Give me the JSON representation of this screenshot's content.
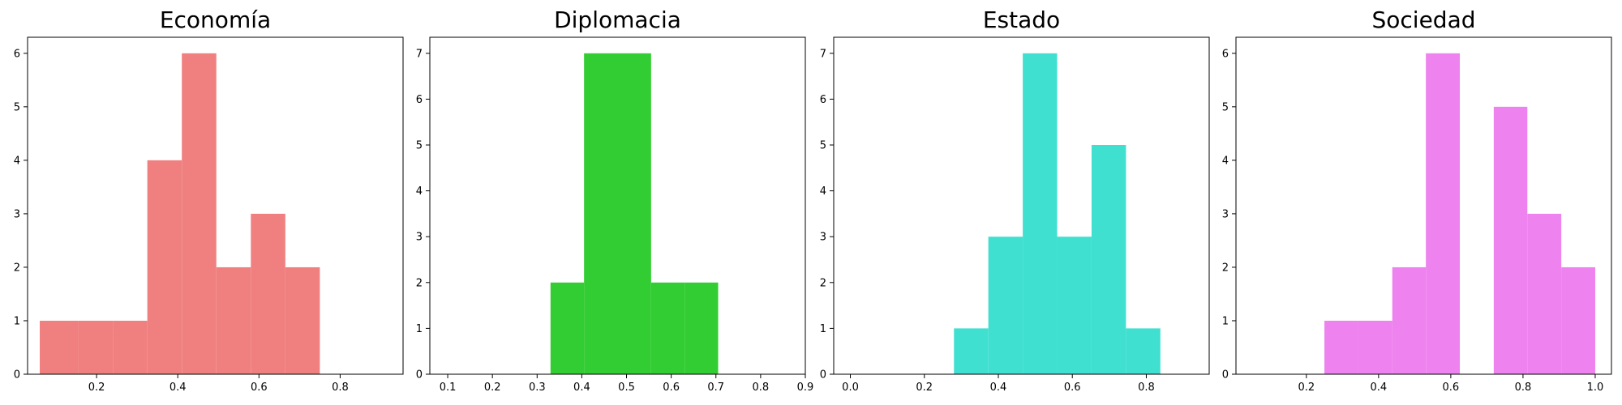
{
  "chart_data": [
    {
      "type": "bar",
      "title": "Economía",
      "color": "#f08080",
      "xlim": [
        0.03,
        0.955
      ],
      "ylim": [
        0,
        6.3
      ],
      "xticks": [
        "0.2",
        "0.4",
        "0.6",
        "0.8"
      ],
      "yticks": [
        "0",
        "1",
        "2",
        "3",
        "4",
        "5",
        "6"
      ],
      "bins": [
        {
          "x0": 0.06,
          "x1": 0.155,
          "count": 1
        },
        {
          "x0": 0.155,
          "x1": 0.24,
          "count": 1
        },
        {
          "x0": 0.24,
          "x1": 0.325,
          "count": 1
        },
        {
          "x0": 0.325,
          "x1": 0.41,
          "count": 4
        },
        {
          "x0": 0.41,
          "x1": 0.495,
          "count": 6
        },
        {
          "x0": 0.495,
          "x1": 0.58,
          "count": 2
        },
        {
          "x0": 0.58,
          "x1": 0.665,
          "count": 3
        },
        {
          "x0": 0.665,
          "x1": 0.75,
          "count": 2
        }
      ]
    },
    {
      "type": "bar",
      "title": "Diplomacia",
      "color": "#32cd32",
      "xlim": [
        0.06,
        0.9
      ],
      "ylim": [
        0,
        7.35
      ],
      "xticks": [
        "0.1",
        "0.2",
        "0.3",
        "0.4",
        "0.5",
        "0.6",
        "0.7",
        "0.8",
        "0.9"
      ],
      "yticks": [
        "0",
        "1",
        "2",
        "3",
        "4",
        "5",
        "6",
        "7"
      ],
      "bins": [
        {
          "x0": 0.33,
          "x1": 0.405,
          "count": 2
        },
        {
          "x0": 0.405,
          "x1": 0.48,
          "count": 7
        },
        {
          "x0": 0.48,
          "x1": 0.555,
          "count": 7
        },
        {
          "x0": 0.555,
          "x1": 0.63,
          "count": 2
        },
        {
          "x0": 0.63,
          "x1": 0.705,
          "count": 2
        }
      ]
    },
    {
      "type": "bar",
      "title": "Estado",
      "color": "#40e0d0",
      "xlim": [
        -0.045,
        0.97
      ],
      "ylim": [
        0,
        7.35
      ],
      "xticks": [
        "0.0",
        "0.2",
        "0.4",
        "0.6",
        "0.8"
      ],
      "yticks": [
        "0",
        "1",
        "2",
        "3",
        "4",
        "5",
        "6",
        "7"
      ],
      "bins": [
        {
          "x0": 0.28,
          "x1": 0.373,
          "count": 1
        },
        {
          "x0": 0.373,
          "x1": 0.466,
          "count": 3
        },
        {
          "x0": 0.466,
          "x1": 0.559,
          "count": 7
        },
        {
          "x0": 0.559,
          "x1": 0.652,
          "count": 3
        },
        {
          "x0": 0.652,
          "x1": 0.745,
          "count": 5
        },
        {
          "x0": 0.745,
          "x1": 0.838,
          "count": 1
        }
      ]
    },
    {
      "type": "bar",
      "title": "Sociedad",
      "color": "#ee82ee",
      "xlim": [
        0.005,
        1.045
      ],
      "ylim": [
        0,
        6.3
      ],
      "xticks": [
        "0.2",
        "0.4",
        "0.6",
        "0.8",
        "1.0"
      ],
      "yticks": [
        "0",
        "1",
        "2",
        "3",
        "4",
        "5",
        "6"
      ],
      "bins": [
        {
          "x0": 0.25,
          "x1": 0.344,
          "count": 1
        },
        {
          "x0": 0.344,
          "x1": 0.438,
          "count": 1
        },
        {
          "x0": 0.438,
          "x1": 0.531,
          "count": 2
        },
        {
          "x0": 0.531,
          "x1": 0.625,
          "count": 6
        },
        {
          "x0": 0.719,
          "x1": 0.812,
          "count": 5
        },
        {
          "x0": 0.812,
          "x1": 0.906,
          "count": 3
        },
        {
          "x0": 0.906,
          "x1": 1.0,
          "count": 2
        }
      ]
    }
  ]
}
